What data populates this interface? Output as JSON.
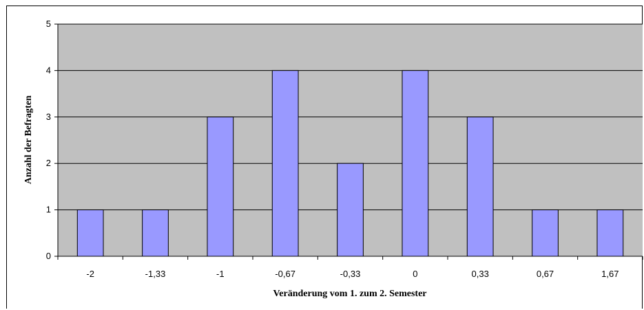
{
  "chart_data": {
    "type": "bar",
    "title": "",
    "xlabel": "Veränderung vom 1. zum 2. Semester",
    "ylabel": "Anzahl der Befragten",
    "categories": [
      "-2",
      "-1,33",
      "-1",
      "-0,67",
      "-0,33",
      "0",
      "0,33",
      "0,67",
      "1,67"
    ],
    "values": [
      1,
      1,
      3,
      4,
      2,
      4,
      3,
      1,
      1
    ],
    "ylim": [
      0,
      5
    ],
    "yticks": [
      "0",
      "1",
      "2",
      "3",
      "4",
      "5"
    ],
    "grid": true,
    "legend": "none",
    "colors": {
      "bar_fill": "#9999ff",
      "plot_background": "#c0c0c0",
      "gridline": "#000000"
    }
  }
}
